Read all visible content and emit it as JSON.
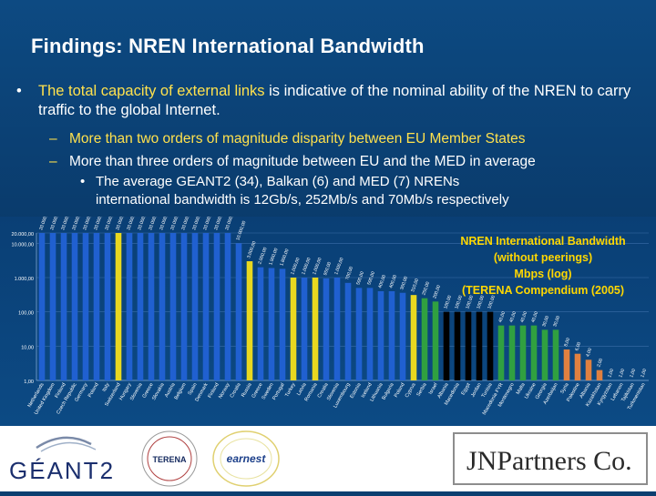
{
  "slide": {
    "title": "Findings: NREN International Bandwidth",
    "bullet1_a": "The total capacity of external links",
    "bullet1_b": " is indicative of the nominal ability of the NREN to carry traffic to the global Internet.",
    "sub1": "More than two orders of magnitude disparity between EU Member States",
    "sub2": "More than three orders of magnitude between EU and the MED in average",
    "subsub_1": "The average GEANT2 (34), Balkan (6) and MED (7) NRENs",
    "subsub_2": "international  bandwidth is 12Gb/s, 252Mb/s and 70Mb/s respectively"
  },
  "chart_data": {
    "type": "bar",
    "title_lines": [
      "NREN International Bandwidth",
      "(without peerings)",
      "Mbps (log)",
      "(TERENA Compendium (2005)"
    ],
    "yscale": "log",
    "ylim": [
      1,
      20000
    ],
    "yticks": [
      "1,00",
      "10,00",
      "100,00",
      "1.000,00",
      "10.000,00",
      "20.000,00"
    ],
    "grid": true,
    "categories": [
      "Netherlands",
      "United Kingdom",
      "Finland",
      "Czech Republic",
      "Germany",
      "Poland",
      "Italy",
      "Switzerland",
      "Hungary",
      "Slovenia",
      "Greece",
      "Slovakia",
      "Austria",
      "Belgium",
      "Spain",
      "Denmark",
      "Finland",
      "Norway",
      "Croatia",
      "Russia",
      "Greece",
      "Sweden",
      "Portugal",
      "Turkey",
      "Latvia",
      "Romania",
      "Croatia",
      "Slovenia",
      "Luxembourg",
      "Estonia",
      "Iceland",
      "Lithuania",
      "Bulgaria",
      "Poland",
      "Cyprus",
      "Serbia",
      "Israel",
      "Albania",
      "Macedonia",
      "Egypt",
      "Jordan",
      "Tunisia",
      "Macedonia FYR",
      "Montenegro",
      "Malta",
      "Ukraine",
      "Georgia",
      "Azerbaijan",
      "Syria",
      "Palestine",
      "Albania",
      "Kazakhstan",
      "Kyrgyzstan",
      "Lebanon",
      "Tajikistan",
      "Turkmenistan"
    ],
    "values": [
      20000,
      20000,
      20000,
      20000,
      20000,
      20000,
      20000,
      20000,
      20000,
      20000,
      20000,
      20000,
      20000,
      20000,
      20000,
      20000,
      20000,
      20000,
      10000,
      3000,
      2000,
      1900,
      1800,
      1000,
      1000,
      1000,
      950,
      1000,
      700,
      500,
      500,
      400,
      400,
      360,
      310,
      250,
      200,
      100,
      100,
      100,
      100,
      100,
      40,
      40,
      40,
      40,
      30,
      30,
      8,
      6,
      4,
      2,
      1,
      1,
      1,
      1
    ],
    "value_labels": [
      "20.000,00",
      "20.000,00",
      "20.000,00",
      "20.000,00",
      "20.000,00",
      "20.000,00",
      "20.000,00",
      "20.000,00",
      "20.000,00",
      "20.000,00",
      "20.000,00",
      "20.000,00",
      "20.000,00",
      "20.000,00",
      "20.000,00",
      "20.000,00",
      "20.000,00",
      "20.000,00",
      "10.000,00",
      "3.000,00",
      "2.000,00",
      "1.900,00",
      "1.800,00",
      "1.000,00",
      "1.000,00",
      "1.000,00",
      "950,00",
      "1.000,00",
      "700,00",
      "500,00",
      "500,00",
      "400,00",
      "400,00",
      "360,00",
      "310,00",
      "250,00",
      "200,00",
      "100,00",
      "100,00",
      "100,00",
      "100,00",
      "100,00",
      "40,00",
      "40,00",
      "40,00",
      "40,00",
      "30,00",
      "30,00",
      "8,00",
      "6,00",
      "4,00",
      "2,00",
      "1,00",
      "1,00",
      "1,00",
      "1,00"
    ],
    "colors": [
      "#2060d0",
      "#2060d0",
      "#2060d0",
      "#2060d0",
      "#2060d0",
      "#2060d0",
      "#2060d0",
      "#e8d820",
      "#2060d0",
      "#2060d0",
      "#2060d0",
      "#2060d0",
      "#2060d0",
      "#2060d0",
      "#2060d0",
      "#2060d0",
      "#2060d0",
      "#2060d0",
      "#2060d0",
      "#e8d820",
      "#2060d0",
      "#2060d0",
      "#2060d0",
      "#e8d820",
      "#2060d0",
      "#e8d820",
      "#2060d0",
      "#2060d0",
      "#2060d0",
      "#2060d0",
      "#2060d0",
      "#2060d0",
      "#2060d0",
      "#2060d0",
      "#e8d820",
      "#30a040",
      "#30a040",
      "#000000",
      "#000000",
      "#000000",
      "#000000",
      "#000000",
      "#30a040",
      "#30a040",
      "#30a040",
      "#30a040",
      "#30a040",
      "#30a040",
      "#e08040",
      "#e08040",
      "#e08040",
      "#e08040",
      "#e08040",
      "#e08040",
      "#e08040",
      "#e08040"
    ]
  },
  "logos": {
    "geant": "GÉANT2",
    "terena": "TERENA",
    "earnest": "earnest",
    "jnp": "JNPartners Co."
  },
  "colors": {
    "accent": "#ffe14d",
    "background": "#0b3f70",
    "chart_title": "#ffd700"
  }
}
